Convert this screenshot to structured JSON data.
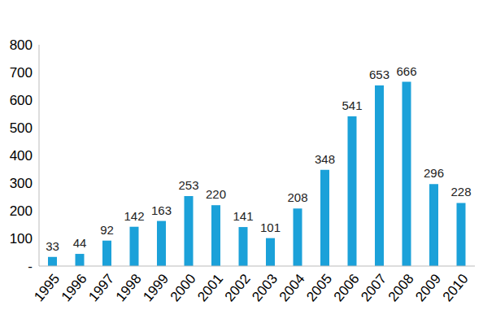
{
  "chart_data": {
    "type": "bar",
    "categories": [
      "1995",
      "1996",
      "1997",
      "1998",
      "1999",
      "2000",
      "2001",
      "2002",
      "2003",
      "2004",
      "2005",
      "2006",
      "2007",
      "2008",
      "2009",
      "2010"
    ],
    "values": [
      33,
      44,
      92,
      142,
      163,
      253,
      220,
      141,
      101,
      208,
      348,
      541,
      653,
      666,
      296,
      228
    ],
    "color": "#1ba1d9",
    "ylim": [
      0,
      800
    ],
    "yticks": [
      {
        "value": 0,
        "label": "-"
      },
      100,
      200,
      300,
      400,
      500,
      600,
      700,
      800
    ],
    "grid": false,
    "data_labels": true
  }
}
